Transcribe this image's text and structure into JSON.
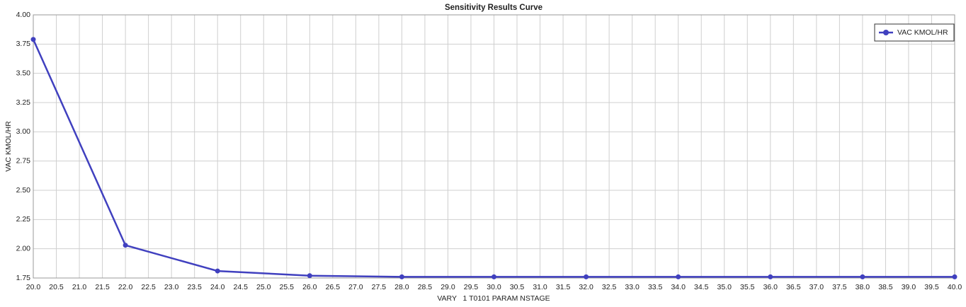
{
  "chart_data": {
    "type": "line",
    "title": "Sensitivity Results Curve",
    "xlabel": "VARY   1 T0101 PARAM NSTAGE",
    "ylabel": "VAC KMOL/HR",
    "x": [
      20,
      22,
      24,
      26,
      28,
      30,
      32,
      34,
      36,
      38,
      40
    ],
    "series": [
      {
        "name": "VAC KMOL/HR",
        "color": "#4040bf",
        "values": [
          3.79,
          2.03,
          1.81,
          1.77,
          1.76,
          1.76,
          1.76,
          1.76,
          1.76,
          1.76,
          1.76
        ]
      }
    ],
    "xlim": [
      20,
      40
    ],
    "ylim": [
      1.75,
      4
    ],
    "xticks": [
      {
        "value": 20,
        "label": "20.0"
      },
      {
        "value": 20.5,
        "label": "20.5"
      },
      {
        "value": 21,
        "label": "21.0"
      },
      {
        "value": 21.5,
        "label": "21.5"
      },
      {
        "value": 22,
        "label": "22.0"
      },
      {
        "value": 22.5,
        "label": "22.5"
      },
      {
        "value": 23,
        "label": "23.0"
      },
      {
        "value": 23.5,
        "label": "23.5"
      },
      {
        "value": 24,
        "label": "24.0"
      },
      {
        "value": 24.5,
        "label": "24.5"
      },
      {
        "value": 25,
        "label": "25.0"
      },
      {
        "value": 25.5,
        "label": "25.5"
      },
      {
        "value": 26,
        "label": "26.0"
      },
      {
        "value": 26.5,
        "label": "26.5"
      },
      {
        "value": 27,
        "label": "27.0"
      },
      {
        "value": 27.5,
        "label": "27.5"
      },
      {
        "value": 28,
        "label": "28.0"
      },
      {
        "value": 28.5,
        "label": "28.5"
      },
      {
        "value": 29,
        "label": "29.0"
      },
      {
        "value": 29.5,
        "label": "29.5"
      },
      {
        "value": 30,
        "label": "30.0"
      },
      {
        "value": 30.5,
        "label": "30.5"
      },
      {
        "value": 31,
        "label": "31.0"
      },
      {
        "value": 31.5,
        "label": "31.5"
      },
      {
        "value": 32,
        "label": "32.0"
      },
      {
        "value": 32.5,
        "label": "32.5"
      },
      {
        "value": 33,
        "label": "33.0"
      },
      {
        "value": 33.5,
        "label": "33.5"
      },
      {
        "value": 34,
        "label": "34.0"
      },
      {
        "value": 34.5,
        "label": "34.5"
      },
      {
        "value": 35,
        "label": "35.0"
      },
      {
        "value": 35.5,
        "label": "35.5"
      },
      {
        "value": 36,
        "label": "36.0"
      },
      {
        "value": 36.5,
        "label": "36.5"
      },
      {
        "value": 37,
        "label": "37.0"
      },
      {
        "value": 37.5,
        "label": "37.5"
      },
      {
        "value": 38,
        "label": "38.0"
      },
      {
        "value": 38.5,
        "label": "38.5"
      },
      {
        "value": 39,
        "label": "39.0"
      },
      {
        "value": 39.5,
        "label": "39.5"
      },
      {
        "value": 40,
        "label": "40.0"
      }
    ],
    "yticks": [
      {
        "value": 1.75,
        "label": "1.75"
      },
      {
        "value": 2,
        "label": "2.00"
      },
      {
        "value": 2.25,
        "label": "2.25"
      },
      {
        "value": 2.5,
        "label": "2.50"
      },
      {
        "value": 2.75,
        "label": "2.75"
      },
      {
        "value": 3,
        "label": "3.00"
      },
      {
        "value": 3.25,
        "label": "3.25"
      },
      {
        "value": 3.5,
        "label": "3.50"
      },
      {
        "value": 3.75,
        "label": "3.75"
      },
      {
        "value": 4,
        "label": "4.00"
      }
    ],
    "grid": true,
    "legend": "upper right"
  }
}
